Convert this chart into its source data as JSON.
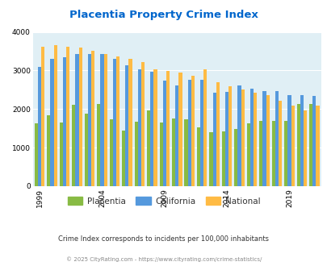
{
  "title": "Placentia Property Crime Index",
  "title_color": "#0066cc",
  "years": [
    1999,
    2000,
    2001,
    2002,
    2003,
    2004,
    2005,
    2006,
    2007,
    2008,
    2009,
    2010,
    2011,
    2012,
    2013,
    2014,
    2015,
    2016,
    2017,
    2018,
    2019,
    2020,
    2021
  ],
  "placentia": [
    1640,
    1840,
    1660,
    2110,
    1880,
    2140,
    1730,
    1450,
    1670,
    1960,
    1650,
    1760,
    1740,
    1530,
    1390,
    1420,
    1490,
    1620,
    1700,
    1690,
    1700,
    2140,
    2140
  ],
  "california": [
    3100,
    3310,
    3350,
    3420,
    3420,
    3420,
    3310,
    3140,
    3040,
    2960,
    2730,
    2620,
    2750,
    2760,
    2430,
    2440,
    2620,
    2530,
    2470,
    2470,
    2360,
    2360,
    2350
  ],
  "national": [
    3620,
    3650,
    3620,
    3590,
    3510,
    3420,
    3370,
    3310,
    3220,
    3040,
    2990,
    2950,
    2870,
    3040,
    2700,
    2590,
    2500,
    2430,
    2360,
    2220,
    2100,
    1960,
    2090
  ],
  "placentia_color": "#88bb44",
  "california_color": "#5599dd",
  "national_color": "#ffbb44",
  "bg_color": "#e0eff5",
  "ylim": [
    0,
    4000
  ],
  "yticks": [
    0,
    1000,
    2000,
    3000,
    4000
  ],
  "xtick_years": [
    1999,
    2004,
    2009,
    2014,
    2019
  ],
  "legend_labels": [
    "Placentia",
    "California",
    "National"
  ],
  "subtitle": "Crime Index corresponds to incidents per 100,000 inhabitants",
  "footer": "© 2025 CityRating.com - https://www.cityrating.com/crime-statistics/",
  "subtitle_color": "#333333",
  "footer_color": "#888888"
}
